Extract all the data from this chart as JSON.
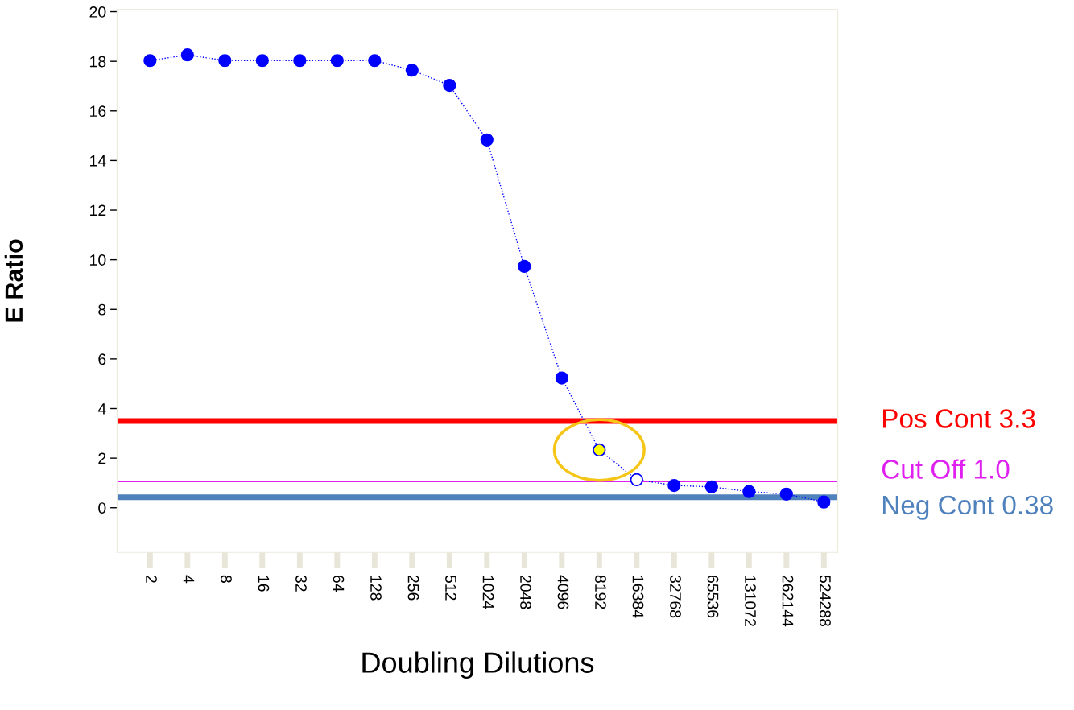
{
  "chart_data": {
    "type": "line",
    "xlabel": "Doubling Dilutions",
    "ylabel": "E Ratio",
    "categories": [
      "2",
      "4",
      "8",
      "16",
      "32",
      "64",
      "128",
      "256",
      "512",
      "1024",
      "2048",
      "4096",
      "8192",
      "16384",
      "32768",
      "65536",
      "131072",
      "262144",
      "524288"
    ],
    "series": [
      {
        "color": "#0000ff",
        "values": [
          18.03,
          18.26,
          18.03,
          18.03,
          18.03,
          18.03,
          18.03,
          17.64,
          17.03,
          14.83,
          9.73,
          5.23,
          2.33,
          1.13,
          0.9,
          0.84,
          0.65,
          0.55,
          0.23
        ],
        "colors": [
          "#0000ff",
          "#0000ff",
          "#0000ff",
          "#0000ff",
          "#0000ff",
          "#0000ff",
          "#0000ff",
          "#0000ff",
          "#0000ff",
          "#0000ff",
          "#0000ff",
          "#0000ff",
          "#ffff00",
          "#ffffff",
          "#0000ff",
          "#0000ff",
          "#0000ff",
          "#0000ff",
          "#0000ff"
        ]
      }
    ],
    "ylim": [
      -1.8,
      20.1
    ],
    "yticks": [
      0,
      2,
      4,
      6,
      8,
      10,
      12,
      14,
      16,
      18,
      20
    ],
    "ref_lines": [
      {
        "axis": "y",
        "value": 3.5,
        "label": "Pos Cont 3.3",
        "color": "#ff0000"
      },
      {
        "axis": "y",
        "value": 1.05,
        "label": "Cut Off 1.0",
        "color": "#e020f0"
      },
      {
        "axis": "y",
        "value": 0.42,
        "label": "Neg Cont 0.38",
        "color": "#4f81bd"
      }
    ],
    "marker": "circle",
    "line_style": "dotted",
    "grid": false
  }
}
